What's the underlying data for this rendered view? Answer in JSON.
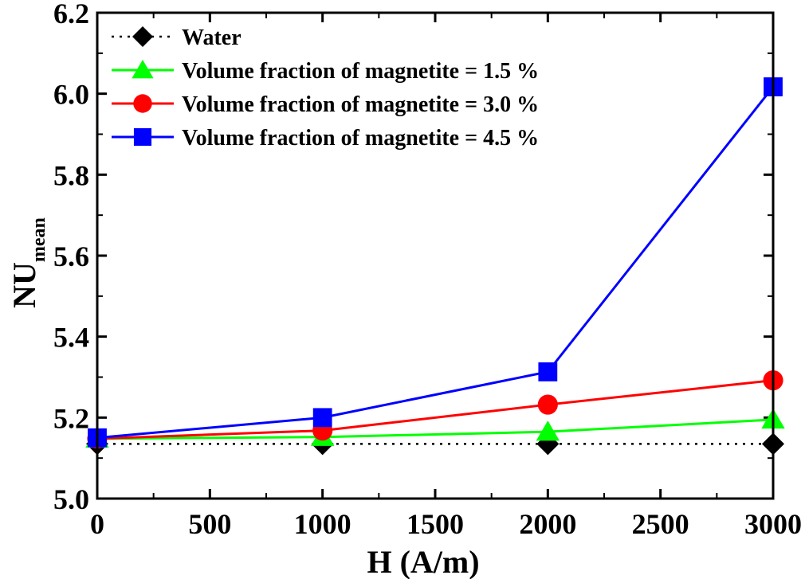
{
  "chart_data": {
    "type": "line",
    "title": "",
    "xlabel": "H (A/m)",
    "ylabel_main": "NU",
    "ylabel_sub": "mean",
    "xlim": [
      0,
      3000
    ],
    "ylim": [
      5.0,
      6.2
    ],
    "xticks": [
      "0",
      "500",
      "1000",
      "1500",
      "2000",
      "2500",
      "3000"
    ],
    "xtick_values": [
      0,
      500,
      1000,
      1500,
      2000,
      2500,
      3000
    ],
    "yticks": [
      "5.0",
      "5.2",
      "5.4",
      "5.6",
      "5.8",
      "6.0",
      "6.2"
    ],
    "ytick_values": [
      5.0,
      5.2,
      5.4,
      5.6,
      5.8,
      6.0,
      6.2
    ],
    "legend_position": "top-left",
    "series": [
      {
        "name": "Water",
        "color": "#000000",
        "marker": "diamond",
        "dashed": true,
        "x": [
          0,
          1000,
          2000,
          3000
        ],
        "y": [
          5.135,
          5.135,
          5.135,
          5.135
        ]
      },
      {
        "name": "Volume fraction of magnetite = 1.5 %",
        "color": "#00ff00",
        "marker": "triangle",
        "dashed": false,
        "x": [
          0,
          1000,
          2000,
          3000
        ],
        "y": [
          5.148,
          5.152,
          5.165,
          5.195
        ]
      },
      {
        "name": "Volume fraction of magnetite = 3.0 %",
        "color": "#ff0000",
        "marker": "circle",
        "dashed": false,
        "x": [
          0,
          1000,
          2000,
          3000
        ],
        "y": [
          5.148,
          5.168,
          5.232,
          5.292
        ]
      },
      {
        "name": "Volume fraction of magnetite = 4.5 %",
        "color": "#0000ff",
        "marker": "square",
        "dashed": false,
        "x": [
          0,
          1000,
          2000,
          3000
        ],
        "y": [
          5.15,
          5.2,
          5.313,
          6.017
        ]
      }
    ]
  }
}
